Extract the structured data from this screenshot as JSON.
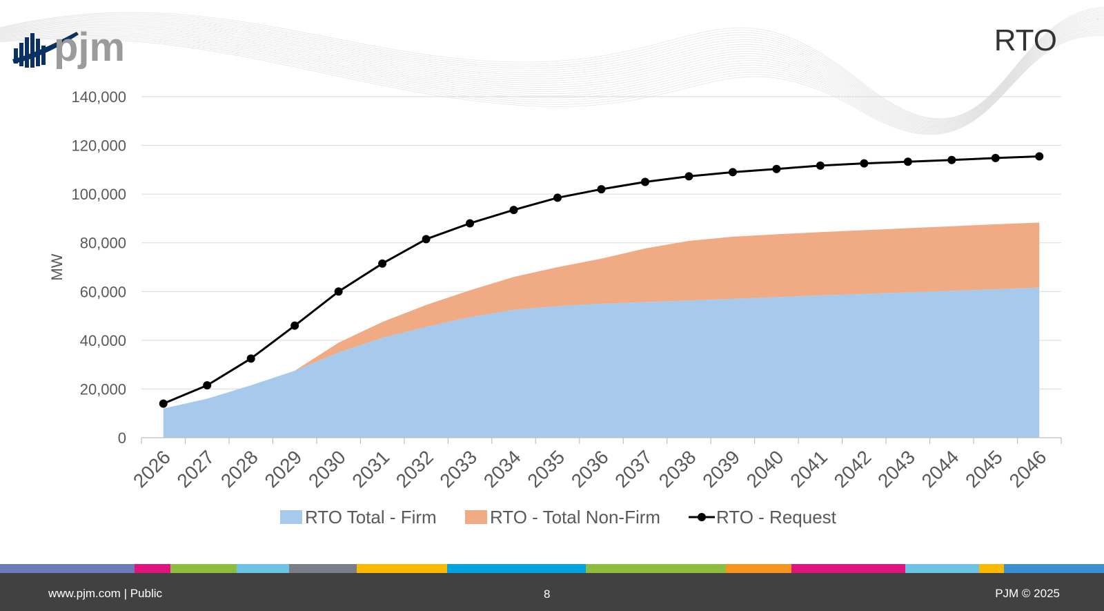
{
  "header": {
    "title": "RTO",
    "logo_text": "pjm"
  },
  "footer": {
    "left": "www.pjm.com | Public",
    "page": "8",
    "right": "PJM © 2025"
  },
  "colorbar": [
    "#6b7db8",
    "#e0127e",
    "#8cbd3f",
    "#6ec2e4",
    "#7a7f87",
    "#fbba00",
    "#00a3e0",
    "#8cbd3f",
    "#f7941d",
    "#e0127e",
    "#6ec2e4",
    "#fbba00",
    "#3a8fd0"
  ],
  "colors": {
    "firm": "#a7c9eb",
    "nonfirm": "#f0aa84",
    "request": "#000000",
    "grid": "#d9d9d9",
    "axis_text": "#595959"
  },
  "chart_data": {
    "type": "area",
    "ylabel": "MW",
    "xlabel": "",
    "ylim": [
      0,
      140000
    ],
    "yticks": [
      0,
      20000,
      40000,
      60000,
      80000,
      100000,
      120000,
      140000
    ],
    "ytick_labels": [
      "0",
      "20,000",
      "40,000",
      "60,000",
      "80,000",
      "100,000",
      "120,000",
      "140,000"
    ],
    "grid": true,
    "legend_position": "bottom",
    "categories": [
      "2026",
      "2027",
      "2028",
      "2029",
      "2030",
      "2031",
      "2032",
      "2033",
      "2034",
      "2035",
      "2036",
      "2037",
      "2038",
      "2039",
      "2040",
      "2041",
      "2042",
      "2043",
      "2044",
      "2045",
      "2046"
    ],
    "series": [
      {
        "name": "RTO Total - Firm",
        "kind": "area",
        "values": [
          12000,
          16000,
          21500,
          27500,
          35000,
          41000,
          45500,
          49500,
          52500,
          54000,
          55000,
          55700,
          56300,
          57000,
          57700,
          58400,
          59000,
          59700,
          60300,
          60900,
          61600
        ]
      },
      {
        "name": "RTO - Total Non-Firm",
        "kind": "area",
        "values": [
          0,
          0,
          0,
          0,
          4000,
          6500,
          9000,
          11000,
          13500,
          16000,
          18500,
          22000,
          24500,
          25500,
          25800,
          26000,
          26200,
          26300,
          26500,
          26700,
          26700
        ]
      },
      {
        "name": "RTO - Request",
        "kind": "line",
        "values": [
          14000,
          21500,
          32500,
          46000,
          60000,
          71500,
          81500,
          88000,
          93500,
          98500,
          102000,
          105000,
          107300,
          109000,
          110300,
          111700,
          112600,
          113300,
          114000,
          114800,
          115500
        ]
      }
    ]
  }
}
